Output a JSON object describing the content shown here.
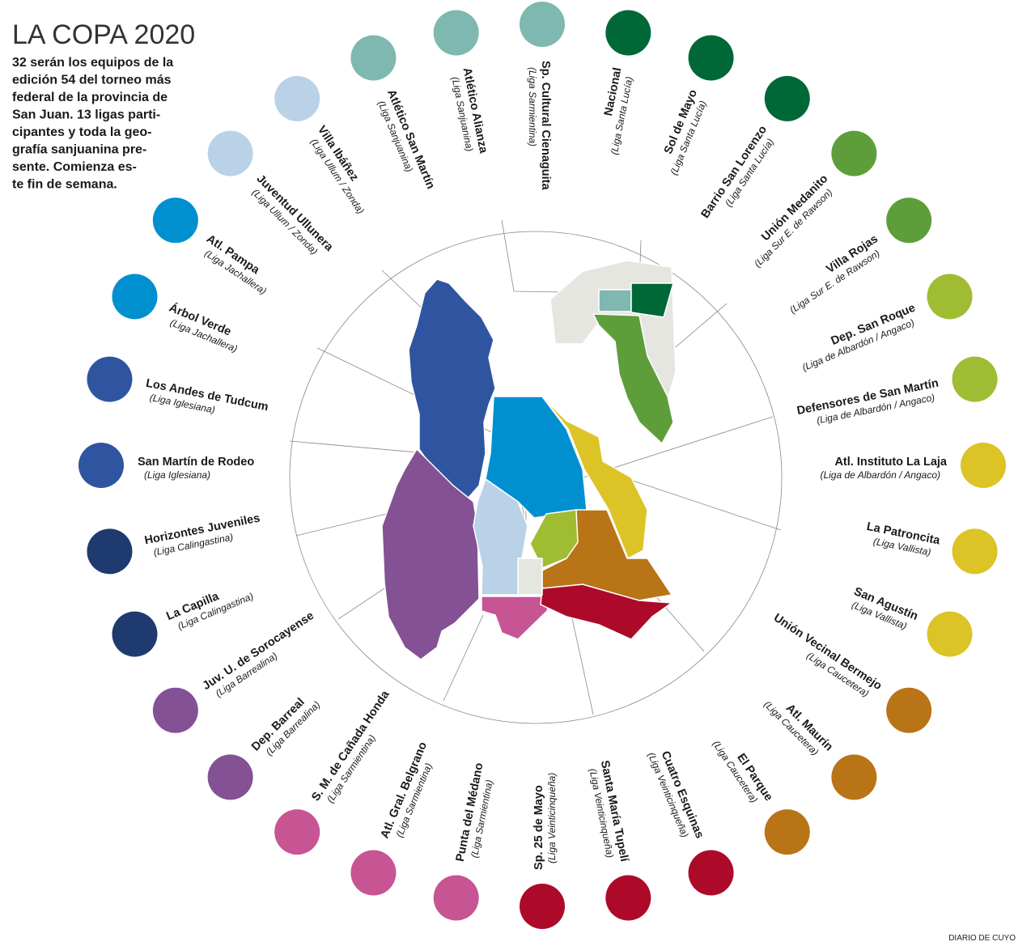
{
  "header": {
    "title": "LA COPA 2020",
    "intro_lines": [
      "32 serán los equipos de la",
      "edición 54 del torneo más",
      "federal de la provincia de",
      "San Juan. 13  ligas parti-",
      "cipantes y toda la geo-",
      "grafía sanjuanina pre-",
      "sente. Comienza es-",
      "te fin de semana."
    ]
  },
  "teams": [
    {
      "name": "Sp. Cultural Cienaguita",
      "league": "(Liga Sarmientina)",
      "color": "#7fb8b0"
    },
    {
      "name": "Nacional",
      "league": "(Liga Santa Lucía)",
      "color": "#006837"
    },
    {
      "name": "Sol de Mayo",
      "league": "(Liga Santa Lucía)",
      "color": "#006837"
    },
    {
      "name": "Barrio San Lorenzo",
      "league": "(Liga Santa Lucía)",
      "color": "#006837"
    },
    {
      "name": "Unión Medanito",
      "league": "(Liga Sur E. de Rawson)",
      "color": "#5e9e3a"
    },
    {
      "name": "Villa Rojas",
      "league": "(Liga Sur E. de Rawson)",
      "color": "#5e9e3a"
    },
    {
      "name": "Dep. San Roque",
      "league": "(Liga de Albardón / Angaco)",
      "color": "#a0bc32"
    },
    {
      "name": "Defensores de San Martín",
      "league": "(Liga de Albardón / Angaco)",
      "color": "#a0bc32"
    },
    {
      "name": "Atl. Instituto La Laja",
      "league": "(Liga de Albardón / Angaco)",
      "color": "#dcc326"
    },
    {
      "name": "La Patroncita",
      "league": "(Liga Vallista)",
      "color": "#dcc326"
    },
    {
      "name": "San Agustín",
      "league": "(Liga Vallista)",
      "color": "#dcc326"
    },
    {
      "name": "Unión Vecinal Bermejo",
      "league": "(Liga Caucetera)",
      "color": "#b87416"
    },
    {
      "name": "Atl. Maurín",
      "league": "(Liga Caucetera)",
      "color": "#b87416"
    },
    {
      "name": "El Parque",
      "league": "(Liga Caucetera)",
      "color": "#b87416"
    },
    {
      "name": "Cuatro Esquinas",
      "league": "(Liga Veinticinqueña)",
      "color": "#ad0a2a"
    },
    {
      "name": "Santa María Tupelí",
      "league": "(Liga Veinticinqueña)",
      "color": "#ad0a2a"
    },
    {
      "name": "Sp. 25 de Mayo",
      "league": "(Liga Veinticinqueña)",
      "color": "#ad0a2a"
    },
    {
      "name": "Punta del Médano",
      "league": "(Liga Sarmientina)",
      "color": "#c75493"
    },
    {
      "name": "Atl. Gral. Belgrano",
      "league": "(Liga Sarmientina)",
      "color": "#c75493"
    },
    {
      "name": "S. M. de Cañada Honda",
      "league": "(Liga Sarmientina)",
      "color": "#c75493"
    },
    {
      "name": "Dep. Barreal",
      "league": "(Liga Barrealina)",
      "color": "#835194"
    },
    {
      "name": "Juv. U. de Sorocayense",
      "league": "(Liga Barrealina)",
      "color": "#835194"
    },
    {
      "name": "La Capilla",
      "league": "(Liga Calingastina)",
      "color": "#1f3a6e"
    },
    {
      "name": "Horizontes Juveniles",
      "league": "(Liga Calingastina)",
      "color": "#1f3a6e"
    },
    {
      "name": "San Martín de Rodeo",
      "league": "(Liga Iglesiana)",
      "color": "#2f55a0"
    },
    {
      "name": "Los Andes de Tudcum",
      "league": "(Liga Iglesiana)",
      "color": "#2f55a0"
    },
    {
      "name": "Árbol Verde",
      "league": "(Liga Jachallera)",
      "color": "#0090d0"
    },
    {
      "name": "Atl. Pampa",
      "league": "(Liga Jachallera)",
      "color": "#0090d0"
    },
    {
      "name": "Juventud Ullunera",
      "league": "(Liga Ullum / Zonda)",
      "color": "#b9d2e8"
    },
    {
      "name": "Villa Ibáñez",
      "league": "(Liga Ullum / Zonda)",
      "color": "#b9d2e8"
    },
    {
      "name": "Atlético San Martín",
      "league": "(Liga Sanjuanina)",
      "color": "#7fb8b0"
    },
    {
      "name": "Atlético Alianza",
      "league": "(Liga Sanjuanina)",
      "color": "#7fb8b0"
    }
  ],
  "credit": "DIARIO DE CUYO"
}
